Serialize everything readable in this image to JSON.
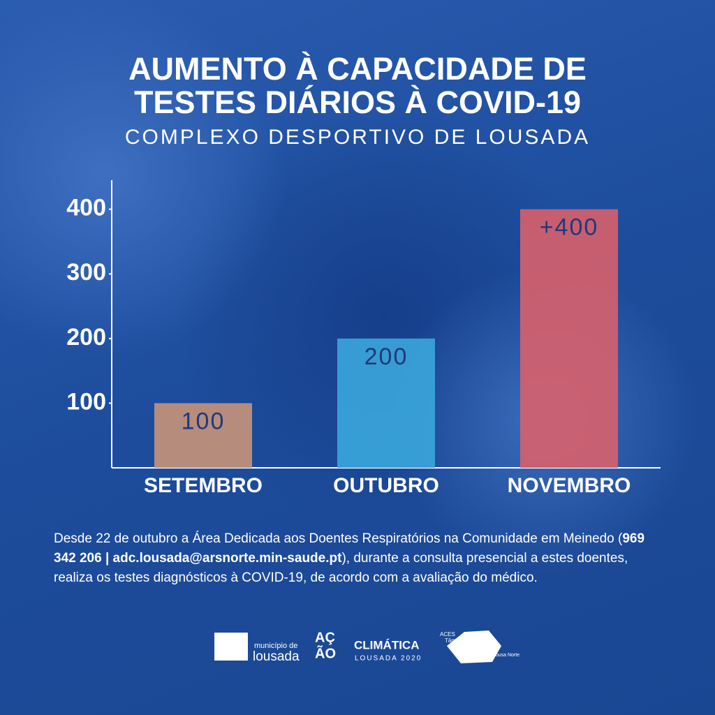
{
  "chart_data": {
    "type": "bar",
    "title": [
      "AUMENTO À CAPACIDADE DE",
      "TESTES DIÁRIOS À COVID-19"
    ],
    "subtitle": "COMPLEXO DESPORTIVO DE LOUSADA",
    "categories": [
      "SETEMBRO",
      "OUTUBRO",
      "NOVEMBRO"
    ],
    "values": [
      100,
      200,
      400
    ],
    "value_labels": [
      "100",
      "200",
      "+400"
    ],
    "colors": [
      "#c8947a",
      "#3ba6dc",
      "#d8606b"
    ],
    "ylim": [
      0,
      445
    ],
    "yticks": [
      100,
      200,
      300,
      400
    ],
    "grid": false
  },
  "footer": {
    "text": [
      "Desde 22 de outubro a Área Dedicada aos Doentes Respiratórios na Comunidade em Meinedo (",
      "969 342 206 | adc.lousada@arsnorte.min-saude.pt",
      "), durante a consulta presencial a estes doentes, realiza os testes diagnósticos à COVID-19, de acordo com a avaliação do médico."
    ]
  },
  "logos": {
    "municipio": [
      "município de",
      "lousada"
    ],
    "acao": [
      "AÇ",
      "ÃO",
      "CLIMÁTICA",
      "LOUSADA 2020"
    ],
    "aces": [
      "ACES",
      "Tâmega III",
      "Vale do Sousa Norte"
    ]
  }
}
